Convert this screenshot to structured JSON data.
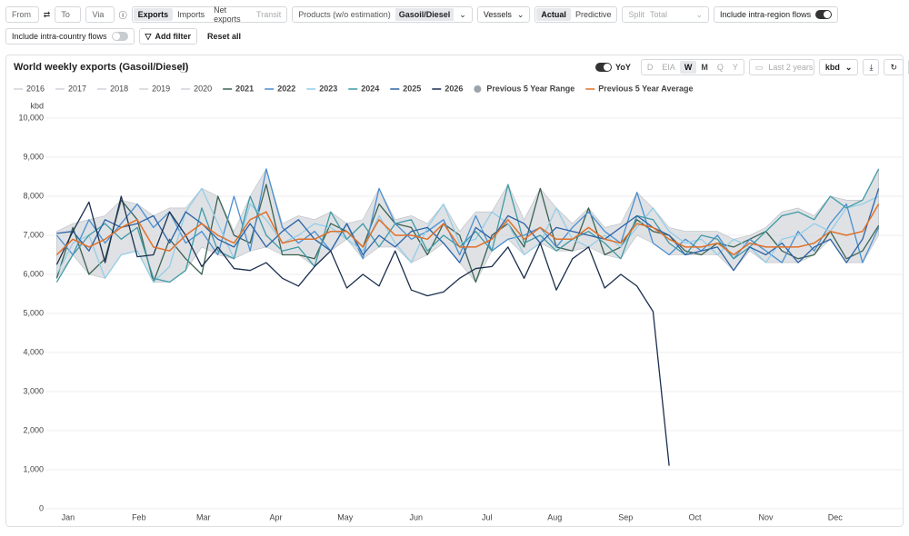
{
  "toolbar": {
    "from": "From",
    "to": "To",
    "via": "Via",
    "flows": [
      "Exports",
      "Imports",
      "Net exports",
      "Transit"
    ],
    "products_label": "Products (w/o estimation)",
    "product": "Gasoil/Diesel",
    "vessels": "Vessels",
    "modes": [
      "Actual",
      "Predictive"
    ],
    "split_label": "Split",
    "split": "Total",
    "intra_region": "Include intra-region flows",
    "intra_country": "Include intra-country flows",
    "add_filter": "Add filter",
    "reset": "Reset all"
  },
  "chart_data": {
    "type": "line",
    "title": "World weekly exports (Gasoil/Diesel)",
    "yoy": "YoY",
    "periods": [
      "D",
      "EIA",
      "W",
      "M",
      "Q",
      "Y"
    ],
    "range_picker": "Last 2 years",
    "unit_select": "kbd",
    "y_label": "kbd",
    "x": [
      1,
      2,
      3,
      4,
      5,
      6,
      7,
      8,
      9,
      10,
      11,
      12,
      13,
      14,
      15,
      16,
      17,
      18,
      19,
      20,
      21,
      22,
      23,
      24,
      25,
      26,
      27,
      28,
      29,
      30,
      31,
      32,
      33,
      34,
      35,
      36,
      37,
      38,
      39,
      40,
      41,
      42,
      43,
      44,
      45,
      46,
      47,
      48,
      49,
      50,
      51,
      52
    ],
    "xlim": [
      0.3,
      53.6
    ],
    "xticks": [
      {
        "value": 1.7,
        "label": "Jan"
      },
      {
        "value": 6.1,
        "label": "Feb"
      },
      {
        "value": 10.1,
        "label": "Mar"
      },
      {
        "value": 14.6,
        "label": "Apr"
      },
      {
        "value": 18.9,
        "label": "May"
      },
      {
        "value": 23.3,
        "label": "Jun"
      },
      {
        "value": 27.7,
        "label": "Jul"
      },
      {
        "value": 31.9,
        "label": "Aug"
      },
      {
        "value": 36.3,
        "label": "Sep"
      },
      {
        "value": 40.6,
        "label": "Oct"
      },
      {
        "value": 45.0,
        "label": "Nov"
      },
      {
        "value": 49.3,
        "label": "Dec"
      }
    ],
    "ylim": [
      0,
      10000
    ],
    "yticks": [
      0,
      {
        "value": 1000,
        "label": "1,000"
      },
      {
        "value": 2000,
        "label": "2,000"
      },
      {
        "value": 3000,
        "label": "3,000"
      },
      {
        "value": 4000,
        "label": "4,000"
      },
      {
        "value": 5000,
        "label": "5,000"
      },
      {
        "value": 6000,
        "label": "6,000"
      },
      {
        "value": 7000,
        "label": "7,000"
      },
      {
        "value": 8000,
        "label": "8,000"
      },
      {
        "value": 9000,
        "label": "9,000"
      },
      {
        "value": 10000,
        "label": "10,000"
      }
    ],
    "grid": true,
    "hidden_series": [
      {
        "name": "2016",
        "color": "#cfd3d8"
      },
      {
        "name": "2017",
        "color": "#cfd3d8"
      },
      {
        "name": "2018",
        "color": "#cfd3d8"
      },
      {
        "name": "2019",
        "color": "#cfd3d8"
      },
      {
        "name": "2020",
        "color": "#cfd3d8"
      }
    ],
    "series": [
      {
        "name": "2021",
        "color": "#3b6352",
        "values": [
          5900,
          7200,
          6000,
          6400,
          7900,
          7400,
          5800,
          6900,
          6400,
          6000,
          8000,
          7000,
          6800,
          8300,
          6500,
          6500,
          6400,
          7300,
          7100,
          6700,
          7800,
          7300,
          7200,
          6500,
          7300,
          7000,
          5800,
          7000,
          7300,
          6700,
          8200,
          6700,
          6600,
          7700,
          6500,
          6700,
          7400,
          7100,
          7000,
          6600,
          6500,
          6800,
          6700,
          6900,
          7100,
          6600,
          6400,
          6500,
          7100,
          6400,
          6600,
          7250
        ]
      },
      {
        "name": "2022",
        "color": "#4a8fd0",
        "values": [
          7000,
          6500,
          7400,
          6800,
          7300,
          7800,
          7200,
          7600,
          6800,
          7100,
          6500,
          8000,
          6600,
          8700,
          7200,
          6800,
          7100,
          6600,
          7300,
          6400,
          8200,
          7300,
          6900,
          7100,
          7400,
          6500,
          7500,
          6600,
          6900,
          7000,
          7200,
          6700,
          7200,
          7600,
          7100,
          6800,
          8100,
          6800,
          6500,
          6900,
          6600,
          7000,
          6400,
          6900,
          6600,
          6300,
          7100,
          6600,
          7300,
          7800,
          6300,
          7200
        ]
      },
      {
        "name": "2023",
        "color": "#93cde8",
        "values": [
          6000,
          6800,
          7000,
          5900,
          6500,
          6600,
          5800,
          6200,
          7600,
          8200,
          7300,
          6400,
          7800,
          7400,
          6800,
          7000,
          7300,
          7200,
          6900,
          6600,
          7500,
          6800,
          6300,
          7200,
          7800,
          6800,
          6900,
          7600,
          7300,
          6500,
          6800,
          7700,
          6900,
          6700,
          7000,
          6700,
          7200,
          7700,
          7100,
          6800,
          6900,
          6500,
          6900,
          6700,
          6300,
          6900,
          7000,
          7300,
          7100,
          7700,
          7800,
          8000
        ]
      },
      {
        "name": "2024",
        "color": "#3f9aa6",
        "values": [
          5800,
          6500,
          7000,
          7300,
          6900,
          7200,
          5900,
          5800,
          6100,
          7700,
          6600,
          6400,
          8000,
          7000,
          6600,
          6700,
          6200,
          7600,
          6900,
          7300,
          6700,
          7300,
          7400,
          6600,
          7000,
          6700,
          7100,
          6600,
          8300,
          6800,
          7000,
          6600,
          6900,
          7100,
          6800,
          6400,
          7500,
          7400,
          6800,
          6500,
          7000,
          6900,
          6400,
          6700,
          7100,
          7500,
          7600,
          7400,
          8000,
          7700,
          7900,
          8700
        ]
      },
      {
        "name": "2025",
        "color": "#2c63a6",
        "values": [
          7050,
          7100,
          6600,
          7400,
          7200,
          7300,
          7500,
          6800,
          7600,
          7300,
          6900,
          6700,
          7300,
          6700,
          7100,
          7400,
          6900,
          6600,
          7300,
          6500,
          7000,
          6700,
          7100,
          7200,
          6800,
          6300,
          7200,
          6900,
          7500,
          7300,
          6800,
          7200,
          7100,
          7000,
          6900,
          7200,
          7500,
          7200,
          7000,
          6500,
          6600,
          6700,
          6100,
          6700,
          6500,
          6800,
          6300,
          6700,
          6900,
          6300,
          6900,
          8200
        ]
      },
      {
        "name": "2026",
        "color": "#1b2f4e",
        "values": [
          6250,
          7100,
          7850,
          6300,
          8000,
          6450,
          6500,
          7600,
          7000,
          6200,
          6700,
          6150,
          6100,
          6300,
          5900,
          5700,
          6200,
          6600,
          5650,
          6000,
          5700,
          6600,
          5600,
          5450,
          5550,
          5900,
          6150,
          6200,
          6700,
          5900,
          6800,
          5600,
          6400,
          6700,
          5650,
          6000,
          5700,
          5050,
          1100,
          null,
          null,
          null,
          null,
          null,
          null,
          null,
          null,
          null,
          null,
          null,
          null,
          null
        ]
      }
    ],
    "range": {
      "name": "Previous 5 Year Range",
      "color": "#9ca3ab",
      "lower": [
        5900,
        6500,
        6000,
        5900,
        6500,
        6600,
        5800,
        5800,
        6100,
        6700,
        6500,
        6400,
        6600,
        6700,
        6500,
        6500,
        6200,
        6600,
        6900,
        6400,
        6700,
        6700,
        6300,
        6500,
        6800,
        6300,
        5800,
        6600,
        6900,
        6500,
        6800,
        6600,
        6600,
        6700,
        6500,
        6400,
        7000,
        6800,
        6500,
        6500,
        6500,
        6500,
        6100,
        6600,
        6300,
        6300,
        6300,
        6500,
        6900,
        6300,
        6300,
        7000
      ],
      "upper": [
        7100,
        7300,
        7400,
        7500,
        7900,
        7800,
        7500,
        7700,
        7700,
        8200,
        8000,
        7100,
        8000,
        8700,
        7300,
        7500,
        7400,
        7600,
        7300,
        7400,
        8200,
        7400,
        7500,
        7300,
        7800,
        7100,
        7600,
        7600,
        8300,
        7400,
        8200,
        7700,
        7300,
        7700,
        7200,
        7300,
        8100,
        7700,
        7200,
        7100,
        7100,
        7100,
        6900,
        7000,
        7200,
        7600,
        7700,
        7500,
        8000,
        7900,
        7900,
        8700
      ]
    },
    "average": {
      "name": "Previous 5 Year Average",
      "color": "#e0702a",
      "values": [
        6500,
        6900,
        6700,
        6900,
        7200,
        7400,
        6700,
        6600,
        7000,
        7300,
        7000,
        6800,
        7400,
        7600,
        6800,
        6900,
        6900,
        7100,
        7100,
        6700,
        7400,
        7000,
        7000,
        6900,
        7300,
        6700,
        6700,
        6900,
        7400,
        6900,
        7200,
        6900,
        6900,
        7200,
        6900,
        6800,
        7300,
        7200,
        6900,
        6700,
        6700,
        6800,
        6500,
        6800,
        6700,
        6700,
        6700,
        6800,
        7100,
        7000,
        7100,
        7800
      ]
    }
  }
}
